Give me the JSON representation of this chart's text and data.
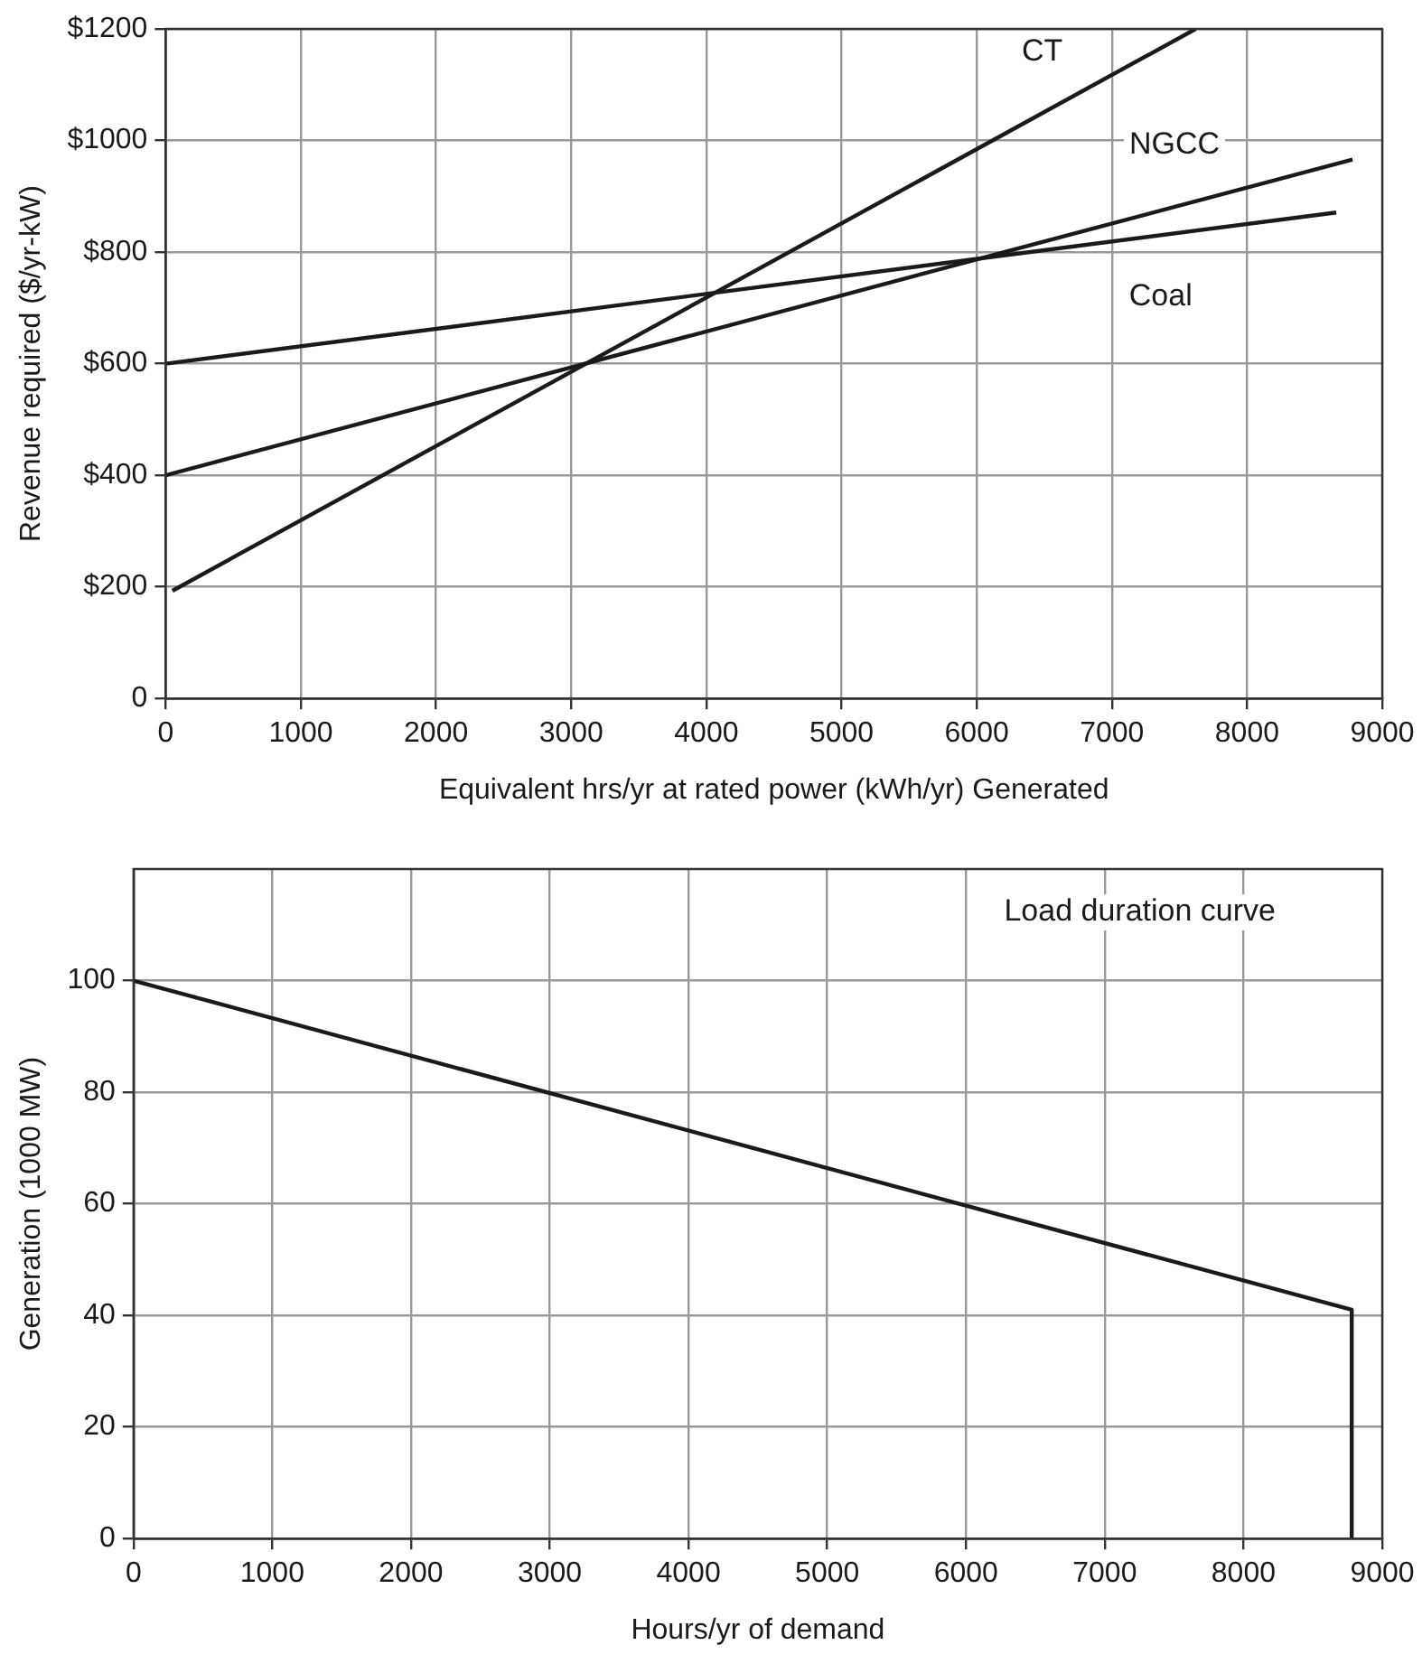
{
  "chart_data": [
    {
      "type": "line",
      "xlabel": "Equivalent hrs/yr at rated power (kWh/yr) Generated",
      "ylabel": "Revenue required ($/yr-kW)",
      "xlim": [
        0,
        9000
      ],
      "xticks": [
        0,
        1000,
        2000,
        3000,
        4000,
        5000,
        6000,
        7000,
        8000,
        9000
      ],
      "ylim": [
        0,
        1200
      ],
      "yticks": [
        0,
        {
          "value": 200,
          "label": "$200"
        },
        {
          "value": 400,
          "label": "$400"
        },
        {
          "value": 600,
          "label": "$600"
        },
        {
          "value": 800,
          "label": "$800"
        },
        {
          "value": 1000,
          "label": "$1000"
        },
        {
          "value": 1200,
          "label": "$1200"
        }
      ],
      "grid": true,
      "legend": false,
      "marker": "none",
      "line_style": "solid",
      "series": [
        {
          "name": "CT",
          "color": "#1a1a1a",
          "x": [
            50,
            7620
          ],
          "values": [
            193,
            1200
          ]
        },
        {
          "name": "NGCC",
          "color": "#1a1a1a",
          "x": [
            0,
            8780
          ],
          "values": [
            400,
            966
          ]
        },
        {
          "name": "Coal",
          "color": "#1a1a1a",
          "x": [
            0,
            8660
          ],
          "values": [
            600,
            871
          ]
        }
      ]
    },
    {
      "type": "line",
      "xlabel": "Hours/yr of demand",
      "ylabel": "Generation (1000 MW)",
      "xlim": [
        0,
        9000
      ],
      "xticks": [
        0,
        1000,
        2000,
        3000,
        4000,
        5000,
        6000,
        7000,
        8000,
        9000
      ],
      "ylim": [
        0,
        120
      ],
      "yticks": [
        0,
        20,
        40,
        60,
        80,
        100
      ],
      "grid": true,
      "legend": false,
      "marker": "none",
      "line_style": "solid",
      "series": [
        {
          "color": "#1a1a1a",
          "x": [
            0,
            8780,
            8780
          ],
          "values": [
            100,
            41,
            0
          ]
        }
      ],
      "annotations": [
        "Load duration curve"
      ]
    }
  ]
}
